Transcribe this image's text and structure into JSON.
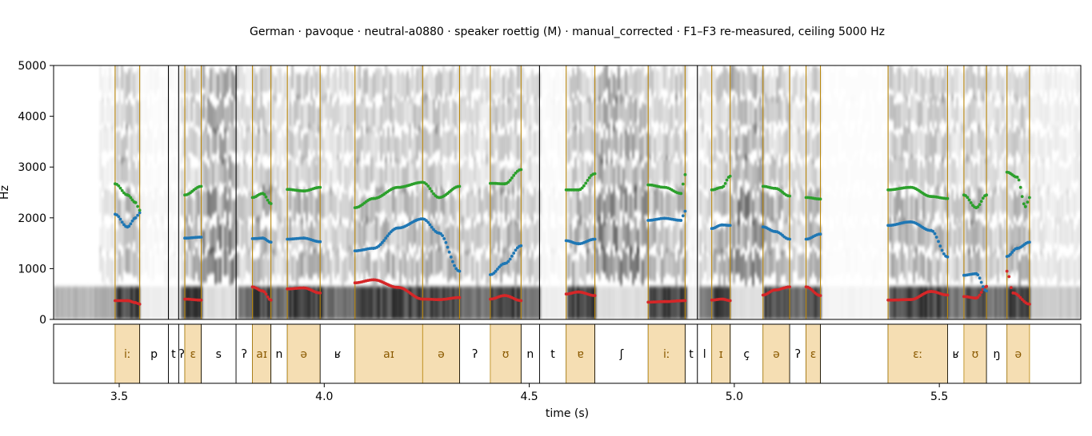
{
  "chart_data": {
    "type": "spectrogram",
    "title": "German · pavoque · neutral-a0880 · speaker roettig (M) · manual_corrected · F1–F3 re-measured, ceiling 5000 Hz",
    "xlabel": "time (s)",
    "ylabel": "Hz",
    "xlim": [
      3.34,
      5.845
    ],
    "ylim": [
      0,
      5000
    ],
    "x_ticks": [
      3.5,
      4.0,
      4.5,
      5.0,
      5.5
    ],
    "x_tick_labels": [
      "3.5",
      "4.0",
      "4.5",
      "5.0",
      "5.5"
    ],
    "y_ticks": [
      0,
      1000,
      2000,
      3000,
      4000,
      5000
    ],
    "y_tick_labels": [
      "0",
      "1000",
      "2000",
      "3000",
      "4000",
      "5000"
    ],
    "colors": {
      "F1": "#d62728",
      "F2": "#1f77b4",
      "F3": "#2ca02c",
      "vowel_fill": "#f5deb3",
      "vowel_text": "#8b5a00",
      "vowel_boundary": "#b8860b",
      "boundary": "#000000"
    },
    "segments": [
      {
        "label": "iː",
        "start": 3.49,
        "end": 3.55,
        "vowel": true
      },
      {
        "label": "p",
        "start": 3.55,
        "end": 3.62,
        "vowel": false
      },
      {
        "label": "t",
        "start": 3.62,
        "end": 3.645,
        "vowel": false
      },
      {
        "label": "ʔ",
        "start": 3.645,
        "end": 3.66,
        "vowel": false
      },
      {
        "label": "ɛ",
        "start": 3.66,
        "end": 3.7,
        "vowel": true
      },
      {
        "label": "s",
        "start": 3.7,
        "end": 3.785,
        "vowel": false
      },
      {
        "label": "ʔ",
        "start": 3.785,
        "end": 3.825,
        "vowel": false
      },
      {
        "label": "aɪ",
        "start": 3.825,
        "end": 3.87,
        "vowel": true
      },
      {
        "label": "n",
        "start": 3.87,
        "end": 3.91,
        "vowel": false
      },
      {
        "label": "ə",
        "start": 3.91,
        "end": 3.99,
        "vowel": true
      },
      {
        "label": "ʁ",
        "start": 3.99,
        "end": 4.075,
        "vowel": false
      },
      {
        "label": "aɪ",
        "start": 4.075,
        "end": 4.24,
        "vowel": true
      },
      {
        "label": "ə",
        "start": 4.24,
        "end": 4.33,
        "vowel": true
      },
      {
        "label": "ʔ",
        "start": 4.33,
        "end": 4.405,
        "vowel": false
      },
      {
        "label": "ʊ",
        "start": 4.405,
        "end": 4.48,
        "vowel": true
      },
      {
        "label": "n",
        "start": 4.48,
        "end": 4.525,
        "vowel": false
      },
      {
        "label": "t",
        "start": 4.525,
        "end": 4.59,
        "vowel": false
      },
      {
        "label": "ɐ",
        "start": 4.59,
        "end": 4.66,
        "vowel": true
      },
      {
        "label": "ʃ",
        "start": 4.66,
        "end": 4.79,
        "vowel": false
      },
      {
        "label": "iː",
        "start": 4.79,
        "end": 4.88,
        "vowel": true
      },
      {
        "label": "t",
        "start": 4.88,
        "end": 4.91,
        "vowel": false
      },
      {
        "label": "l",
        "start": 4.91,
        "end": 4.945,
        "vowel": false
      },
      {
        "label": "ɪ",
        "start": 4.945,
        "end": 4.99,
        "vowel": true
      },
      {
        "label": "ç",
        "start": 4.99,
        "end": 5.07,
        "vowel": false
      },
      {
        "label": "ə",
        "start": 5.07,
        "end": 5.135,
        "vowel": true
      },
      {
        "label": "ʔ",
        "start": 5.135,
        "end": 5.175,
        "vowel": false
      },
      {
        "label": "ɛ",
        "start": 5.175,
        "end": 5.21,
        "vowel": true
      },
      {
        "label": "",
        "start": 5.21,
        "end": 5.375,
        "vowel": false
      },
      {
        "label": "ɛː",
        "start": 5.375,
        "end": 5.52,
        "vowel": true
      },
      {
        "label": "ʁ",
        "start": 5.52,
        "end": 5.56,
        "vowel": false
      },
      {
        "label": "ʊ",
        "start": 5.56,
        "end": 5.615,
        "vowel": true
      },
      {
        "label": "ŋ",
        "start": 5.615,
        "end": 5.665,
        "vowel": false
      },
      {
        "label": "ə",
        "start": 5.665,
        "end": 5.72,
        "vowel": true
      }
    ],
    "series": [
      {
        "name": "F1",
        "tracks": [
          [
            [
              3.49,
              370
            ],
            [
              3.52,
              370
            ],
            [
              3.54,
              330
            ],
            [
              3.55,
              300
            ]
          ],
          [
            [
              3.66,
              400
            ],
            [
              3.7,
              380
            ]
          ],
          [
            [
              3.825,
              640
            ],
            [
              3.85,
              560
            ],
            [
              3.87,
              380
            ]
          ],
          [
            [
              3.91,
              600
            ],
            [
              3.95,
              620
            ],
            [
              3.99,
              520
            ]
          ],
          [
            [
              4.075,
              720
            ],
            [
              4.12,
              780
            ],
            [
              4.18,
              630
            ],
            [
              4.24,
              400
            ],
            [
              4.28,
              390
            ],
            [
              4.33,
              430
            ]
          ],
          [
            [
              4.405,
              400
            ],
            [
              4.44,
              470
            ],
            [
              4.48,
              370
            ]
          ],
          [
            [
              4.59,
              500
            ],
            [
              4.62,
              540
            ],
            [
              4.66,
              470
            ]
          ],
          [
            [
              4.79,
              340
            ],
            [
              4.83,
              350
            ],
            [
              4.88,
              370
            ]
          ],
          [
            [
              4.945,
              380
            ],
            [
              4.97,
              400
            ],
            [
              4.99,
              370
            ]
          ],
          [
            [
              5.07,
              480
            ],
            [
              5.1,
              580
            ],
            [
              5.135,
              640
            ]
          ],
          [
            [
              5.175,
              640
            ],
            [
              5.21,
              470
            ]
          ],
          [
            [
              5.375,
              380
            ],
            [
              5.43,
              390
            ],
            [
              5.48,
              550
            ],
            [
              5.52,
              480
            ]
          ],
          [
            [
              5.56,
              450
            ],
            [
              5.59,
              420
            ],
            [
              5.615,
              650
            ]
          ],
          [
            [
              5.665,
              950
            ],
            [
              5.68,
              520
            ],
            [
              5.72,
              300
            ]
          ]
        ]
      },
      {
        "name": "F2",
        "tracks": [
          [
            [
              3.49,
              2070
            ],
            [
              3.52,
              1820
            ],
            [
              3.54,
              2000
            ],
            [
              3.55,
              2100
            ]
          ],
          [
            [
              3.66,
              1600
            ],
            [
              3.7,
              1620
            ]
          ],
          [
            [
              3.825,
              1590
            ],
            [
              3.85,
              1600
            ],
            [
              3.87,
              1520
            ]
          ],
          [
            [
              3.91,
              1580
            ],
            [
              3.95,
              1600
            ],
            [
              3.99,
              1530
            ]
          ],
          [
            [
              4.075,
              1350
            ],
            [
              4.12,
              1400
            ],
            [
              4.18,
              1800
            ],
            [
              4.24,
              1980
            ],
            [
              4.28,
              1700
            ],
            [
              4.33,
              950
            ]
          ],
          [
            [
              4.405,
              880
            ],
            [
              4.44,
              1100
            ],
            [
              4.48,
              1450
            ]
          ],
          [
            [
              4.59,
              1550
            ],
            [
              4.62,
              1490
            ],
            [
              4.66,
              1580
            ]
          ],
          [
            [
              4.79,
              1950
            ],
            [
              4.83,
              1990
            ],
            [
              4.87,
              1950
            ],
            [
              4.88,
              2130
            ]
          ],
          [
            [
              4.945,
              1790
            ],
            [
              4.97,
              1860
            ],
            [
              4.99,
              1850
            ]
          ],
          [
            [
              5.07,
              1820
            ],
            [
              5.1,
              1730
            ],
            [
              5.135,
              1580
            ]
          ],
          [
            [
              5.175,
              1580
            ],
            [
              5.21,
              1680
            ]
          ],
          [
            [
              5.375,
              1850
            ],
            [
              5.43,
              1920
            ],
            [
              5.48,
              1750
            ],
            [
              5.52,
              1230
            ]
          ],
          [
            [
              5.56,
              870
            ],
            [
              5.59,
              900
            ],
            [
              5.615,
              560
            ]
          ],
          [
            [
              5.665,
              1240
            ],
            [
              5.69,
              1400
            ],
            [
              5.72,
              1520
            ]
          ]
        ]
      },
      {
        "name": "F3",
        "tracks": [
          [
            [
              3.49,
              2670
            ],
            [
              3.52,
              2450
            ],
            [
              3.54,
              2300
            ],
            [
              3.55,
              2150
            ]
          ],
          [
            [
              3.66,
              2450
            ],
            [
              3.7,
              2620
            ]
          ],
          [
            [
              3.825,
              2400
            ],
            [
              3.85,
              2480
            ],
            [
              3.87,
              2280
            ]
          ],
          [
            [
              3.91,
              2560
            ],
            [
              3.95,
              2530
            ],
            [
              3.99,
              2600
            ]
          ],
          [
            [
              4.075,
              2200
            ],
            [
              4.12,
              2380
            ],
            [
              4.18,
              2600
            ],
            [
              4.24,
              2700
            ],
            [
              4.28,
              2400
            ],
            [
              4.33,
              2620
            ]
          ],
          [
            [
              4.405,
              2680
            ],
            [
              4.44,
              2670
            ],
            [
              4.48,
              2950
            ]
          ],
          [
            [
              4.59,
              2550
            ],
            [
              4.62,
              2550
            ],
            [
              4.66,
              2870
            ]
          ],
          [
            [
              4.79,
              2650
            ],
            [
              4.83,
              2600
            ],
            [
              4.87,
              2480
            ],
            [
              4.88,
              2850
            ]
          ],
          [
            [
              4.945,
              2550
            ],
            [
              4.97,
              2600
            ],
            [
              4.99,
              2820
            ]
          ],
          [
            [
              5.07,
              2620
            ],
            [
              5.1,
              2580
            ],
            [
              5.135,
              2430
            ]
          ],
          [
            [
              5.175,
              2400
            ],
            [
              5.21,
              2370
            ]
          ],
          [
            [
              5.375,
              2550
            ],
            [
              5.43,
              2600
            ],
            [
              5.48,
              2420
            ],
            [
              5.52,
              2380
            ]
          ],
          [
            [
              5.56,
              2450
            ],
            [
              5.59,
              2200
            ],
            [
              5.615,
              2450
            ]
          ],
          [
            [
              5.665,
              2900
            ],
            [
              5.69,
              2800
            ],
            [
              5.71,
              2220
            ],
            [
              5.72,
              2400
            ]
          ]
        ]
      }
    ]
  }
}
